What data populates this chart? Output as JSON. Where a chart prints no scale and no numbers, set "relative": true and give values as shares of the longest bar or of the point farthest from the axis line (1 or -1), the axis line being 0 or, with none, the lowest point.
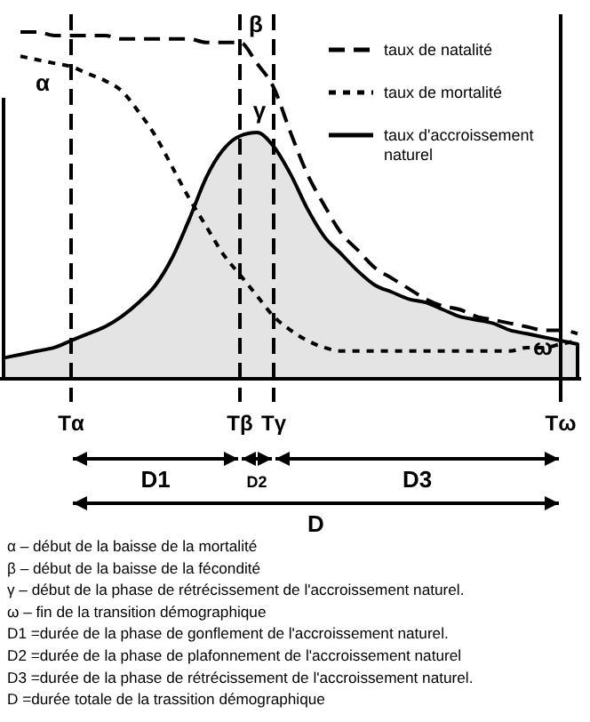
{
  "chart_data": {
    "type": "line",
    "relative": true,
    "legend": "top right",
    "categories": [
      null,
      null,
      null,
      null,
      "Tα",
      null,
      null,
      null,
      null,
      null,
      null,
      null,
      null,
      null,
      "Tβ",
      null,
      "Tγ",
      null,
      null,
      null,
      null,
      null,
      null,
      null,
      null,
      null,
      null,
      null,
      null,
      null,
      null,
      null,
      null,
      "Tω",
      null
    ],
    "series": [
      {
        "name": "taux de natalité",
        "color": "#000000",
        "line_style": "dashed",
        "values": [
          null,
          1.0,
          1.0,
          0.99,
          0.99,
          0.99,
          0.99,
          0.98,
          0.98,
          0.98,
          0.98,
          0.98,
          0.97,
          0.97,
          0.97,
          0.91,
          0.84,
          0.71,
          0.59,
          0.5,
          0.42,
          0.37,
          0.32,
          0.29,
          0.26,
          0.23,
          0.21,
          0.2,
          0.18,
          0.17,
          0.16,
          0.15,
          0.14,
          0.14,
          0.13
        ]
      },
      {
        "name": "taux de mortalité",
        "color": "#000000",
        "line_style": "dotted",
        "values": [
          null,
          0.93,
          0.92,
          0.91,
          0.9,
          0.88,
          0.86,
          0.83,
          0.77,
          0.7,
          0.61,
          0.52,
          0.44,
          0.36,
          0.3,
          0.24,
          0.18,
          0.14,
          0.11,
          0.09,
          0.08,
          0.08,
          0.08,
          0.08,
          0.08,
          0.08,
          0.08,
          0.08,
          0.08,
          0.08,
          0.08,
          0.09,
          0.09,
          0.1,
          0.11
        ]
      },
      {
        "name": "taux d'accroissement naturel",
        "type": "area",
        "color": "#000000",
        "line_style": "solid",
        "values": [
          0.06,
          0.07,
          0.08,
          0.09,
          0.11,
          0.13,
          0.15,
          0.18,
          0.22,
          0.27,
          0.35,
          0.46,
          0.58,
          0.66,
          0.7,
          0.71,
          0.67,
          0.59,
          0.49,
          0.41,
          0.36,
          0.31,
          0.27,
          0.25,
          0.23,
          0.22,
          0.2,
          0.18,
          0.17,
          0.16,
          0.14,
          0.13,
          0.12,
          0.11,
          0.1
        ]
      }
    ],
    "ref_lines": [
      {
        "axis": "x",
        "value": "Tα",
        "line_style": "dashed"
      },
      {
        "axis": "x",
        "value": "Tβ",
        "line_style": "dashed"
      },
      {
        "axis": "x",
        "value": "Tγ",
        "line_style": "dashed"
      },
      {
        "axis": "x",
        "value": "Tω",
        "line_style": "solid"
      }
    ],
    "annotations": [
      {
        "text": "α",
        "x": "Tα",
        "y": 0.83
      },
      {
        "text": "β",
        "x": "Tβ",
        "y": 1.0
      },
      {
        "text": "γ",
        "x": "Tγ",
        "y": 0.72
      },
      {
        "text": "ω",
        "x": "Tω",
        "y": 0.07
      },
      "D1",
      "D2",
      "D3",
      "D",
      "α – début de la baisse de la mortalité",
      "β – début de la baisse de la fécondité",
      "γ – début de la phase de rétrécissement de l'accroissement naturel.",
      "ω – fin de la transition démographique",
      "D1 =durée de la phase de gonflement de l'accroissement naturel.",
      "D2 =durée de la phase de plafonnement de l'accroissement naturel",
      "D3 =durée de la phase de rétrécissement de l'accroissement naturel.",
      "D =durée totale de la trassition démographique"
    ]
  }
}
